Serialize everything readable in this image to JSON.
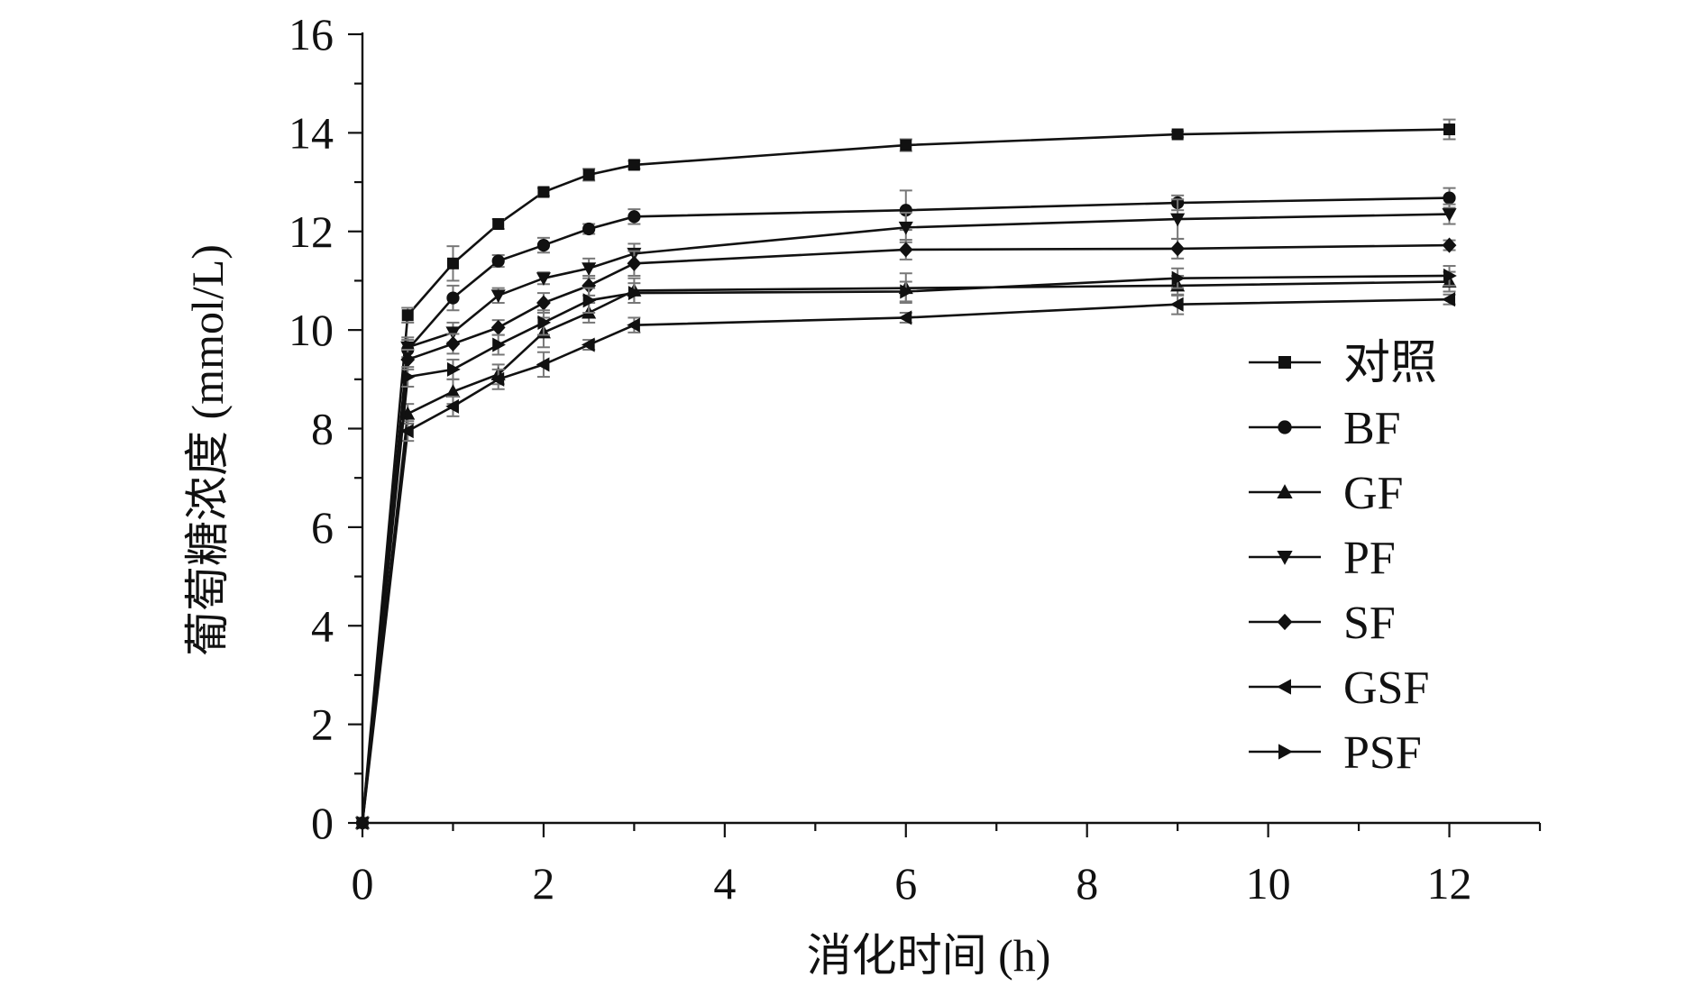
{
  "chart_data": {
    "type": "line",
    "title": "",
    "xlabel": "消化时间 (h)",
    "ylabel": "葡萄糖浓度 (mmol/L)",
    "xlim": [
      0,
      13
    ],
    "ylim": [
      0,
      16
    ],
    "x_ticks": [
      0,
      2,
      4,
      6,
      8,
      10,
      12
    ],
    "y_ticks": [
      0,
      2,
      4,
      6,
      8,
      10,
      12,
      14,
      16
    ],
    "grid": false,
    "legend_position": "right-center",
    "x": [
      0,
      0.5,
      1,
      1.5,
      2,
      2.5,
      3,
      6,
      9,
      12
    ],
    "series": [
      {
        "name": "对照",
        "marker": "square",
        "values": [
          0,
          10.3,
          11.35,
          12.15,
          12.8,
          13.15,
          13.35,
          13.75,
          13.97,
          14.07
        ],
        "errors": [
          0,
          0.15,
          0.35,
          0.1,
          0.08,
          0.12,
          0.08,
          0.12,
          0.06,
          0.2
        ]
      },
      {
        "name": "BF",
        "marker": "circle",
        "values": [
          0,
          9.6,
          10.65,
          11.4,
          11.72,
          12.05,
          12.3,
          12.43,
          12.58,
          12.68
        ],
        "errors": [
          0,
          0.2,
          0.25,
          0.12,
          0.15,
          0.1,
          0.15,
          0.4,
          0.15,
          0.2
        ]
      },
      {
        "name": "GF",
        "marker": "triangle-up",
        "values": [
          0,
          8.3,
          8.75,
          9.1,
          9.95,
          10.35,
          10.8,
          10.85,
          10.9,
          10.98
        ],
        "errors": [
          0,
          0.2,
          0.25,
          0.2,
          0.3,
          0.2,
          0.25,
          0.3,
          0.2,
          0.2
        ]
      },
      {
        "name": "PF",
        "marker": "triangle-down",
        "values": [
          0,
          9.65,
          9.95,
          10.7,
          11.05,
          11.25,
          11.55,
          12.08,
          12.25,
          12.35
        ],
        "errors": [
          0,
          0.2,
          0.2,
          0.15,
          0.12,
          0.2,
          0.2,
          0.3,
          0.4,
          0.2
        ]
      },
      {
        "name": "SF",
        "marker": "diamond",
        "values": [
          0,
          9.4,
          9.72,
          10.05,
          10.55,
          10.9,
          11.35,
          11.63,
          11.65,
          11.72
        ],
        "errors": [
          0,
          0.2,
          0.2,
          0.15,
          0.2,
          0.2,
          0.25,
          0.2,
          0.2,
          0.1
        ]
      },
      {
        "name": "GSF",
        "marker": "triangle-left",
        "values": [
          0,
          7.95,
          8.45,
          9.0,
          9.3,
          9.7,
          10.1,
          10.25,
          10.52,
          10.62
        ],
        "errors": [
          0,
          0.2,
          0.2,
          0.2,
          0.25,
          0.1,
          0.15,
          0.1,
          0.2,
          0.1
        ]
      },
      {
        "name": "PSF",
        "marker": "triangle-right",
        "values": [
          0,
          9.05,
          9.2,
          9.7,
          10.15,
          10.6,
          10.75,
          10.78,
          11.05,
          11.1
        ],
        "errors": [
          0,
          0.2,
          0.2,
          0.2,
          0.25,
          0.25,
          0.2,
          0.2,
          0.2,
          0.2
        ]
      }
    ]
  }
}
